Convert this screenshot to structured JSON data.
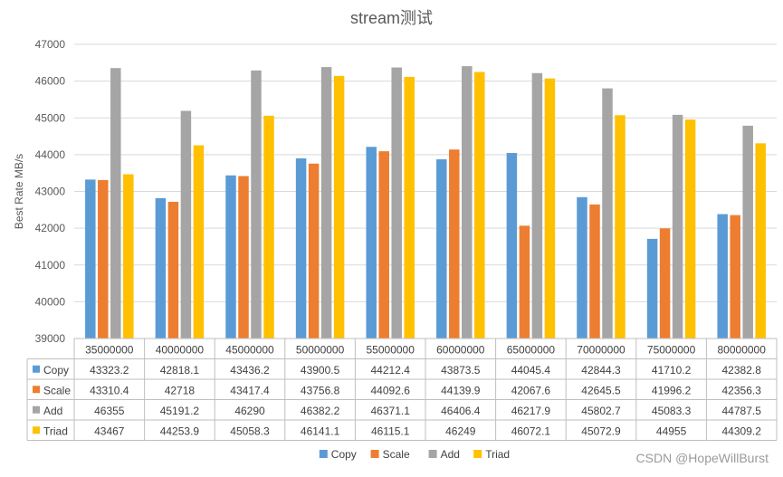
{
  "chart_data": {
    "type": "bar",
    "title": "stream测试",
    "ylabel": "Best Rate MB/s",
    "xlabel": "",
    "ylim": [
      39000,
      47000
    ],
    "yticks": [
      39000,
      40000,
      41000,
      42000,
      43000,
      44000,
      45000,
      46000,
      47000
    ],
    "grid": true,
    "legend_position": "bottom",
    "categories": [
      "35000000",
      "40000000",
      "45000000",
      "50000000",
      "55000000",
      "60000000",
      "65000000",
      "70000000",
      "75000000",
      "80000000"
    ],
    "series": [
      {
        "name": "Copy",
        "color": "#5B9BD5",
        "labels": [
          "43323.2",
          "42818.1",
          "43436.2",
          "43900.5",
          "44212.4",
          "43873.5",
          "44045.4",
          "42844.3",
          "41710.2",
          "42382.8"
        ]
      },
      {
        "name": "Scale",
        "color": "#ED7D31",
        "labels": [
          "43310.4",
          "42718",
          "43417.4",
          "43756.8",
          "44092.6",
          "44139.9",
          "42067.6",
          "42645.5",
          "41996.2",
          "42356.3"
        ]
      },
      {
        "name": "Add",
        "color": "#A5A5A5",
        "labels": [
          "46355",
          "45191.2",
          "46290",
          "46382.2",
          "46371.1",
          "46406.4",
          "46217.9",
          "45802.7",
          "45083.3",
          "44787.5"
        ]
      },
      {
        "name": "Triad",
        "color": "#FFC000",
        "labels": [
          "43467",
          "44253.9",
          "45058.3",
          "46141.1",
          "46115.1",
          "46249",
          "46072.1",
          "45072.9",
          "44955",
          "44309.2"
        ]
      }
    ]
  },
  "watermark": "CSDN @HopeWillBurst"
}
